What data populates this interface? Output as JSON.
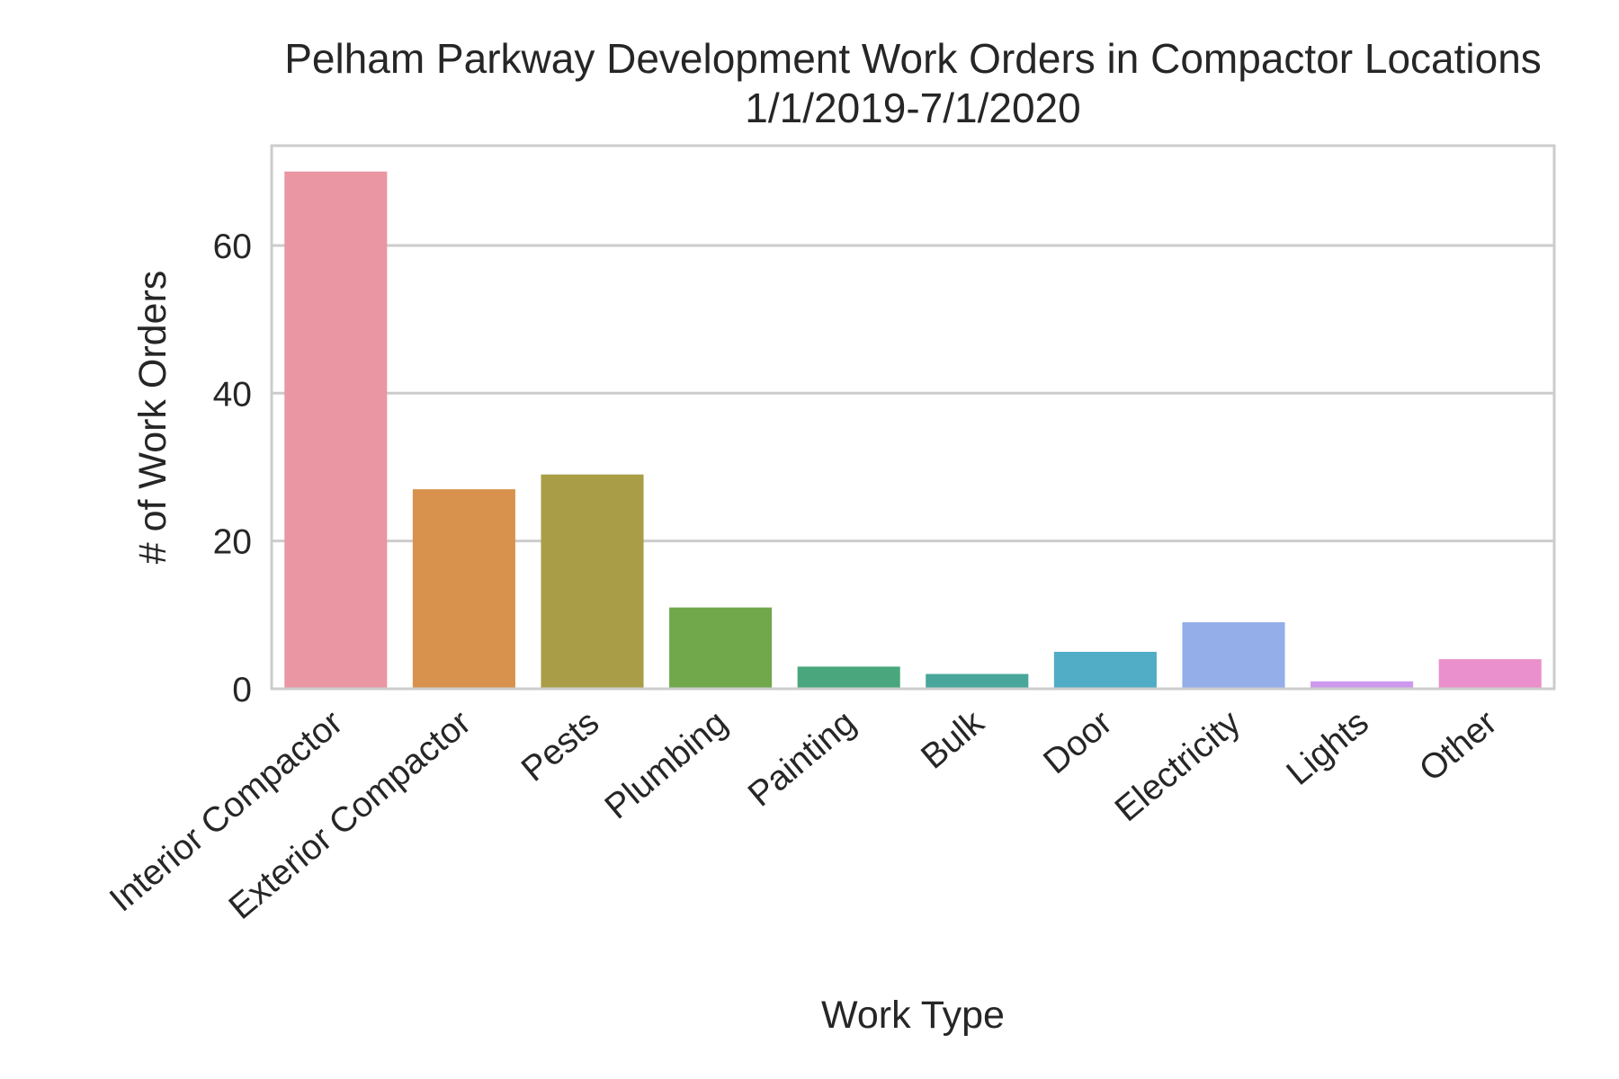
{
  "chart_data": {
    "type": "bar",
    "title": "Pelham Parkway Development Work Orders in Compactor Locations",
    "subtitle": "1/1/2019-7/1/2020",
    "xlabel": "Work Type",
    "ylabel": "# of Work Orders",
    "categories": [
      "Interior Compactor",
      "Exterior Compactor",
      "Pests",
      "Plumbing",
      "Painting",
      "Bulk",
      "Door",
      "Electricity",
      "Lights",
      "Other"
    ],
    "values": [
      70,
      27,
      29,
      11,
      3,
      2,
      5,
      9,
      1,
      4
    ],
    "colors": [
      "#ea96a3",
      "#d8924d",
      "#a99e47",
      "#71a84b",
      "#4aa77d",
      "#48a69a",
      "#51acc5",
      "#93aee9",
      "#cd98ed",
      "#ea90cc"
    ],
    "yticks": [
      0,
      20,
      40,
      60
    ],
    "ylim": [
      0,
      73.5
    ],
    "grid": true,
    "grid_axis": "y",
    "legend": false
  }
}
